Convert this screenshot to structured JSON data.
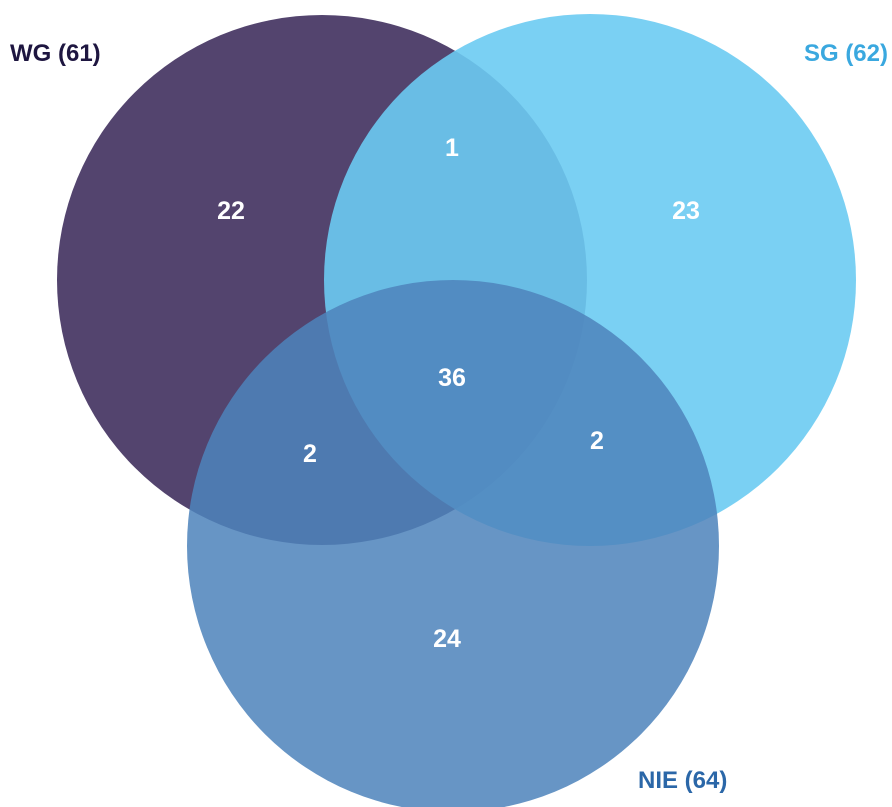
{
  "sets": [
    {
      "id": "wg",
      "label": "WG (61)",
      "circle_color": "#3b2a5a",
      "circle_opacity": 0.88,
      "label_color": "#1e1640"
    },
    {
      "id": "sg",
      "label": "SG (62)",
      "circle_color": "#6ccbf2",
      "circle_opacity": 0.9,
      "label_color": "#3aa8df"
    },
    {
      "id": "nie",
      "label": "NIE (64)",
      "circle_color": "#4e84bb",
      "circle_opacity": 0.86,
      "label_color": "#2b67a8"
    }
  ],
  "regions": {
    "wg_only": "22",
    "sg_only": "23",
    "nie_only": "24",
    "wg_sg": "1",
    "wg_nie": "2",
    "sg_nie": "2",
    "all": "36"
  }
}
